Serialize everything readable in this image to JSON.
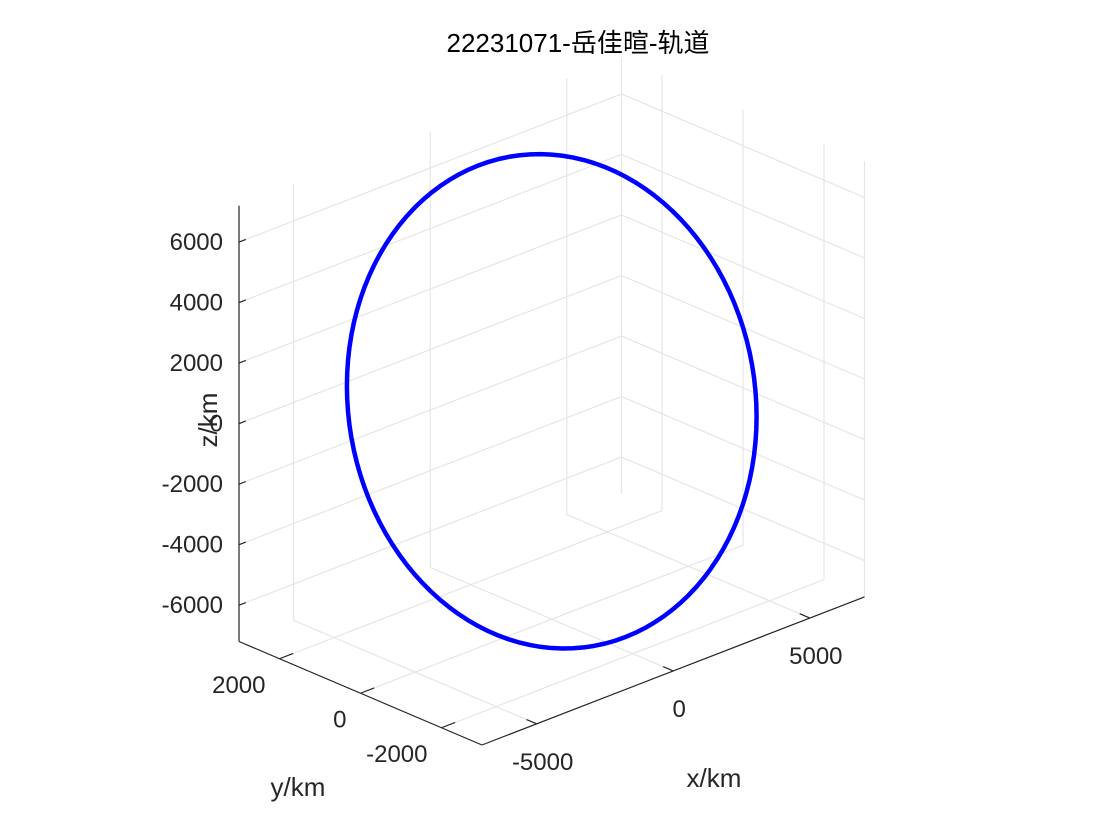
{
  "chart_data": {
    "type": "line",
    "projection": "3d",
    "title": "22231071-岳佳暄-轨道",
    "xlabel": "x/km",
    "ylabel": "y/km",
    "zlabel": "z/km",
    "xlim": [
      -7000,
      7000
    ],
    "ylim": [
      -3000,
      3000
    ],
    "zlim": [
      -7200,
      7200
    ],
    "xticks": [
      -5000,
      0,
      5000
    ],
    "xtick_labels": [
      "-5000",
      "0",
      "5000"
    ],
    "yticks": [
      -2000,
      0,
      2000
    ],
    "ytick_labels": [
      "-2000",
      "0",
      "2000"
    ],
    "zticks": [
      -6000,
      -4000,
      -2000,
      0,
      2000,
      4000,
      6000
    ],
    "ztick_labels": [
      "-6000",
      "-4000",
      "-2000",
      "0",
      "2000",
      "4000",
      "6000"
    ],
    "grid": true,
    "series": [
      {
        "color": "#0000ff",
        "orbit": {
          "semi_major_axis_km": 7000,
          "eccentricity": 0,
          "inclination_deg": 75,
          "raan_deg": 0,
          "samples": 120
        }
      }
    ]
  }
}
